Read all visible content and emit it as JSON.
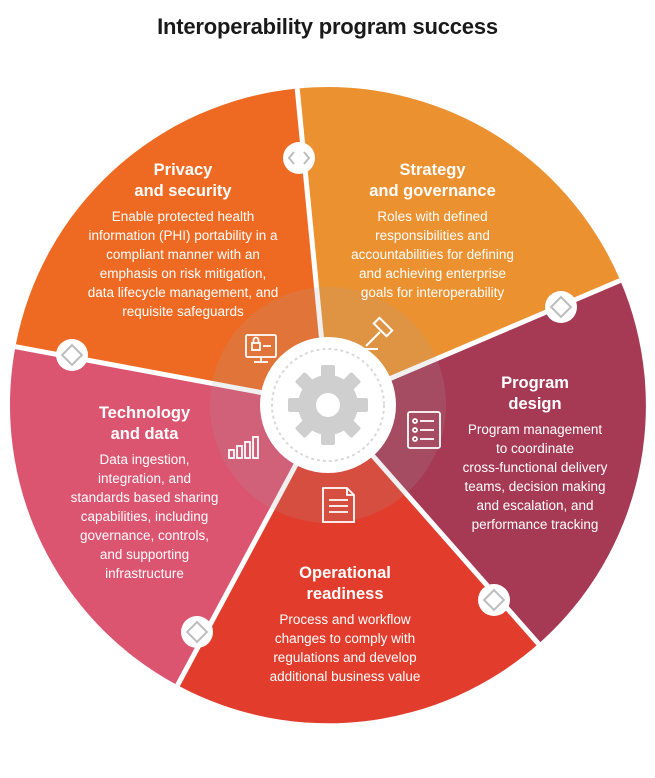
{
  "title": "Interoperability program success",
  "colors": {
    "privacy": "#EE6A23",
    "strategy": "#EB9130",
    "program": "#A63A55",
    "operational": "#E13C2C",
    "technology": "#DB5470",
    "hub": "#ffffff",
    "gear": "#cfcfcf"
  },
  "segments": [
    {
      "id": "privacy",
      "icon": "secure-monitor-icon",
      "title": [
        "Privacy",
        "and security"
      ],
      "body": [
        "Enable protected health",
        "information (PHI) portability in a",
        "compliant manner with an",
        "emphasis on risk mitigation,",
        "data lifecycle management, and",
        "requisite safeguards"
      ]
    },
    {
      "id": "strategy",
      "icon": "gavel-icon",
      "title": [
        "Strategy",
        "and governance"
      ],
      "body": [
        "Roles with defined",
        "responsibilities and",
        "accountabilities for defining",
        "and achieving enterprise",
        "goals for interoperability"
      ]
    },
    {
      "id": "program",
      "icon": "checklist-icon",
      "title": [
        "Program",
        "design"
      ],
      "body": [
        "Program management",
        "to coordinate",
        "cross-functional delivery",
        "teams, decision making",
        "and escalation, and",
        "performance tracking"
      ]
    },
    {
      "id": "operational",
      "icon": "document-icon",
      "title": [
        "Operational",
        "readiness"
      ],
      "body": [
        "Process and workflow",
        "changes to comply with",
        "regulations and develop",
        "additional business value"
      ]
    },
    {
      "id": "technology",
      "icon": "bar-chart-icon",
      "title": [
        "Technology",
        "and data"
      ],
      "body": [
        "Data ingestion,",
        "integration, and",
        "standards based sharing",
        "capabilities, including",
        "governance, controls,",
        "and supporting",
        "infrastructure"
      ]
    }
  ]
}
